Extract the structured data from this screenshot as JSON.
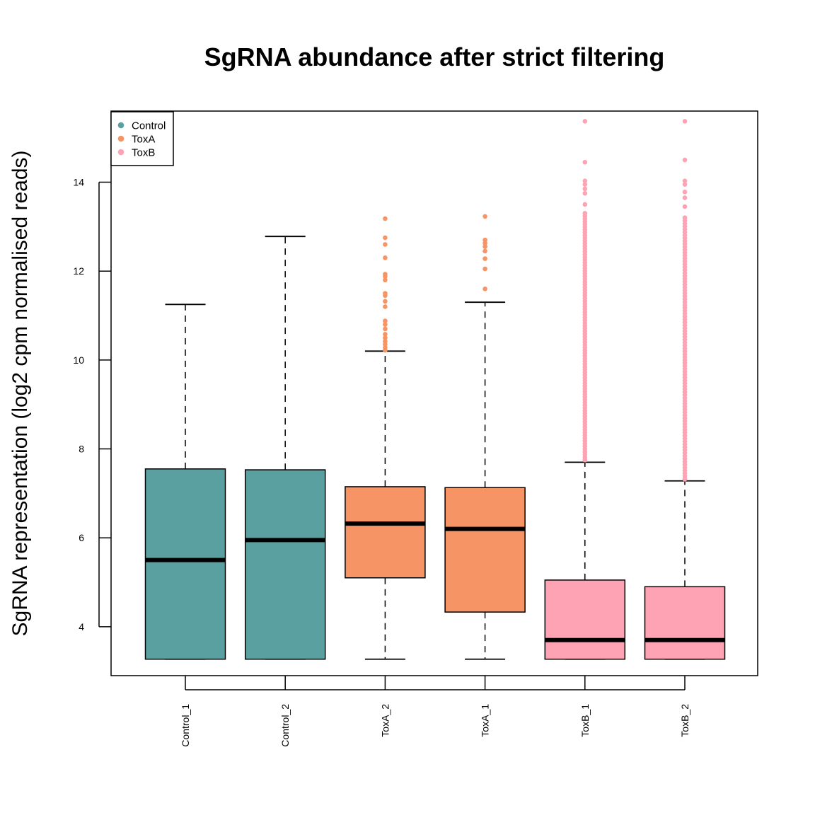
{
  "chart_data": {
    "type": "boxplot",
    "title": "SgRNA abundance after strict filtering",
    "xlabel": "",
    "ylabel": "SgRNA representation (log2 cpm normalised reads)",
    "ylim": [
      2.9,
      15.6
    ],
    "yticks": [
      4,
      6,
      8,
      10,
      12,
      14
    ],
    "grid": false,
    "legend": {
      "position": "top-left",
      "entries": [
        {
          "label": "Control",
          "color": "#5ba0a0"
        },
        {
          "label": "ToxA",
          "color": "#f79465"
        },
        {
          "label": "ToxB",
          "color": "#fea3b4"
        }
      ]
    },
    "categories": [
      "Control_1",
      "Control_2",
      "ToxA_2",
      "ToxA_1",
      "ToxB_1",
      "ToxB_2"
    ],
    "groups": [
      "Control",
      "Control",
      "ToxA",
      "ToxA",
      "ToxB",
      "ToxB"
    ],
    "boxes": [
      {
        "name": "Control_1",
        "color": "#5ba0a0",
        "whisker_low": 3.27,
        "q1": 3.27,
        "median": 5.5,
        "q3": 7.55,
        "whisker_high": 11.25,
        "outliers": []
      },
      {
        "name": "Control_2",
        "color": "#5ba0a0",
        "whisker_low": 3.27,
        "q1": 3.27,
        "median": 5.95,
        "q3": 7.53,
        "whisker_high": 12.78,
        "outliers": []
      },
      {
        "name": "ToxA_2",
        "color": "#f79465",
        "whisker_low": 3.27,
        "q1": 5.1,
        "median": 6.32,
        "q3": 7.15,
        "whisker_high": 10.2,
        "outliers": [
          10.22,
          10.28,
          10.35,
          10.42,
          10.5,
          10.58,
          10.7,
          10.8,
          10.88,
          11.2,
          11.32,
          11.45,
          11.5,
          11.8,
          11.88,
          11.93,
          12.3,
          12.6,
          12.75,
          13.18
        ]
      },
      {
        "name": "ToxA_1",
        "color": "#f79465",
        "whisker_low": 3.27,
        "q1": 4.33,
        "median": 6.2,
        "q3": 7.13,
        "whisker_high": 11.3,
        "outliers": [
          11.6,
          12.05,
          12.28,
          12.45,
          12.55,
          12.63,
          12.7,
          13.23
        ]
      },
      {
        "name": "ToxB_1",
        "color": "#fea3b4",
        "whisker_low": 3.27,
        "q1": 3.27,
        "median": 3.7,
        "q3": 5.05,
        "whisker_high": 7.7,
        "outliers": [
          7.75,
          13.3,
          13.5,
          13.75,
          13.85,
          13.95,
          14.03,
          14.45,
          15.37
        ]
      },
      {
        "name": "ToxB_2",
        "color": "#fea3b4",
        "whisker_low": 3.27,
        "q1": 3.27,
        "median": 3.7,
        "q3": 4.9,
        "whisker_high": 7.28,
        "outliers": [
          7.32,
          13.2,
          13.45,
          13.65,
          13.78,
          13.95,
          14.03,
          14.5,
          15.37
        ]
      }
    ],
    "outlier_dense_ranges": [
      {
        "name": "ToxB_1",
        "from": 7.75,
        "to": 13.3
      },
      {
        "name": "ToxB_2",
        "from": 7.32,
        "to": 13.2
      }
    ]
  }
}
